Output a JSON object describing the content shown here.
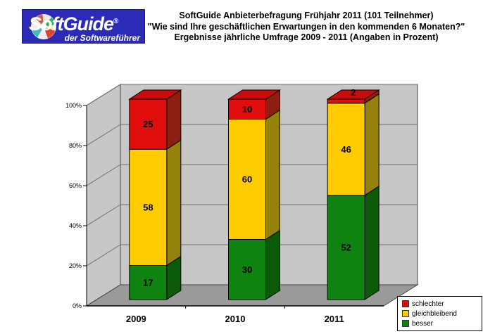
{
  "logo": {
    "name": "SoftGuide",
    "reg": "®",
    "tagline": "der Softwareführer",
    "bg_color": "#2B2BB8",
    "icon": "cd-disc-icon"
  },
  "header": {
    "line1": "SoftGuide Anbieterbefragung Frühjahr 2011 (101 Teilnehmer)",
    "line2": "\"Wie sind Ihre geschäftlichen Erwartungen in den kommenden 6 Monaten?\"",
    "line3": "Ergebnisse jährliche Umfrage 2009 - 2011 (Angaben in Prozent)"
  },
  "chart_data": {
    "type": "bar",
    "stacked": true,
    "projection": "3d",
    "categories": [
      "2009",
      "2010",
      "2011"
    ],
    "series": [
      {
        "name": "schlechter",
        "values": [
          25,
          10,
          2
        ],
        "color": "#E00D0D",
        "color_top": "#C90B0B",
        "color_side": "#8E1D12"
      },
      {
        "name": "gleichbleibend",
        "values": [
          58,
          60,
          46
        ],
        "color": "#FFCC00",
        "color_top": "#DDB000",
        "color_side": "#94820A"
      },
      {
        "name": "besser",
        "values": [
          17,
          30,
          52
        ],
        "color": "#0F830F",
        "color_top": "#0C710C",
        "color_side": "#0A5A0A"
      }
    ],
    "stack_order_bottom_to_top": [
      "besser",
      "gleichbleibend",
      "schlechter"
    ],
    "y_ticks": [
      "0%",
      "20%",
      "40%",
      "60%",
      "80%",
      "100%"
    ],
    "ylim": [
      0,
      100
    ],
    "unit": "Prozent",
    "grid": true,
    "legend_position": "bottom-right",
    "colors": {
      "wall": "#C7C7C7",
      "floor": "#9A9A9A",
      "gridline": "#707070",
      "wall_edge": "#444444",
      "bar_outline": "#000000",
      "label_text": "#000000"
    }
  }
}
